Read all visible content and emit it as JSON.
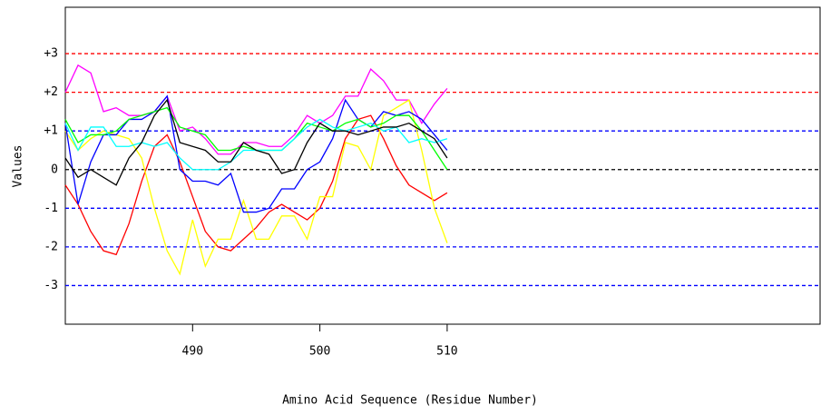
{
  "chart_data": {
    "type": "line",
    "x_label": "Amino Acid Sequence (Residue Number)",
    "y_label": "Values",
    "x": [
      480,
      481,
      482,
      483,
      484,
      485,
      486,
      487,
      488,
      489,
      490,
      491,
      492,
      493,
      494,
      495,
      496,
      497,
      498,
      499,
      500,
      501,
      502,
      503,
      504,
      505,
      506,
      507,
      508,
      509,
      510
    ],
    "xlim": [
      480,
      539.3
    ],
    "xticks": [
      490,
      500,
      510
    ],
    "ylim": [
      -4,
      4.2
    ],
    "yticks": [
      {
        "value": 3,
        "label": "+3"
      },
      {
        "value": 2,
        "label": "+2"
      },
      {
        "value": 1,
        "label": "+1"
      },
      0,
      -1,
      -2,
      -3
    ],
    "grid": true,
    "grid_colors": [
      "#ff0000",
      "#ff0000",
      "#0000ff",
      "#000000",
      "#0000ff",
      "#0000ff",
      "#0000ff"
    ],
    "series": [
      {
        "color": "#ff00ff",
        "values": [
          2,
          2.7,
          2.5,
          1.5,
          1.6,
          1.4,
          1.4,
          1.5,
          1.9,
          1.0,
          1.1,
          0.8,
          0.4,
          0.4,
          0.7,
          0.7,
          0.6,
          0.6,
          0.9,
          1.4,
          1.2,
          1.4,
          1.9,
          1.9,
          2.6,
          2.3,
          1.8,
          1.8,
          1.2,
          1.7,
          2.1
        ]
      },
      {
        "color": "#ff0000",
        "values": [
          -0.4,
          -0.9,
          -1.6,
          -2.1,
          -2.2,
          -1.4,
          -0.3,
          0.6,
          0.9,
          0.2,
          -0.7,
          -1.6,
          -2.0,
          -2.1,
          -1.8,
          -1.5,
          -1.1,
          -0.9,
          -1.1,
          -1.3,
          -1.0,
          -0.3,
          0.8,
          1.3,
          1.4,
          0.8,
          0.1,
          -0.4,
          -0.6,
          -0.8,
          -0.6
        ]
      },
      {
        "color": "#ffff00",
        "values": [
          1.0,
          0.5,
          0.8,
          1.0,
          0.9,
          0.8,
          0.3,
          -1.0,
          -2.1,
          -2.7,
          -1.3,
          -2.5,
          -1.8,
          -1.8,
          -0.8,
          -1.8,
          -1.8,
          -1.2,
          -1.2,
          -1.8,
          -0.7,
          -0.7,
          0.7,
          0.6,
          0,
          1.4,
          1.6,
          1.8,
          0.5,
          -1.0,
          -1.9
        ]
      },
      {
        "color": "#0000ff",
        "values": [
          1.2,
          -0.9,
          0.2,
          0.9,
          0.9,
          1.3,
          1.3,
          1.5,
          1.9,
          0,
          -0.3,
          -0.3,
          -0.4,
          -0.1,
          -1.1,
          -1.1,
          -1.0,
          -0.5,
          -0.5,
          0,
          0.2,
          0.8,
          1.8,
          1.3,
          1.1,
          1.5,
          1.4,
          1.5,
          1.3,
          0.9,
          0.5
        ]
      },
      {
        "color": "#00ff00",
        "values": [
          1.3,
          0.7,
          0.9,
          0.9,
          1.0,
          1.3,
          1.4,
          1.5,
          1.6,
          1.1,
          1.0,
          0.9,
          0.5,
          0.5,
          0.6,
          0.5,
          0.5,
          0.5,
          0.8,
          1.2,
          1.1,
          1.0,
          1.2,
          1.3,
          1.1,
          1.2,
          1.4,
          1.4,
          1.0,
          0.5,
          0
        ]
      },
      {
        "color": "#00ffff",
        "values": [
          1.2,
          0.5,
          1.1,
          1.1,
          0.6,
          0.6,
          0.7,
          0.6,
          0.7,
          0.3,
          0,
          0,
          0,
          0.2,
          0.5,
          0.5,
          0.5,
          0.5,
          0.8,
          1.1,
          1.3,
          1.1,
          1.0,
          1.1,
          1.2,
          1.0,
          1.1,
          0.7,
          0.8,
          0.7,
          0.8
        ]
      },
      {
        "color": "#000000",
        "values": [
          0.3,
          -0.2,
          0,
          -0.2,
          -0.4,
          0.3,
          0.7,
          1.4,
          1.8,
          0.7,
          0.6,
          0.5,
          0.2,
          0.2,
          0.7,
          0.5,
          0.4,
          -0.1,
          0,
          0.7,
          1.2,
          1.0,
          1.0,
          0.9,
          1.0,
          1.1,
          1.1,
          1.2,
          1.0,
          0.8,
          0.3
        ]
      }
    ]
  }
}
